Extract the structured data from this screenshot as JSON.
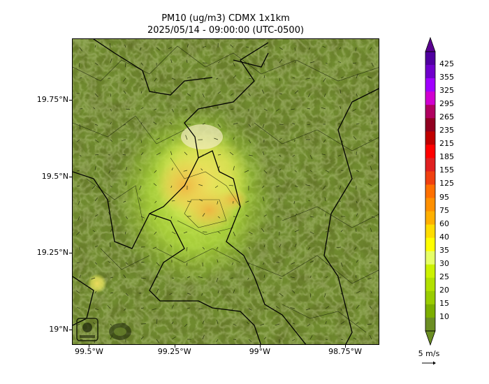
{
  "title_line1": "PM10 (ug/m3) CDMX 1x1km",
  "title_line2": "2025/05/14 - 09:00:00 (UTC-0500)",
  "map": {
    "lon_range": [
      -99.55,
      -98.65
    ],
    "lat_range": [
      18.95,
      19.95
    ],
    "y_ticks": [
      {
        "lat": 19.75,
        "label": "19.75°N"
      },
      {
        "lat": 19.5,
        "label": "19.5°N"
      },
      {
        "lat": 19.25,
        "label": "19.25°N"
      },
      {
        "lat": 19.0,
        "label": "19°N"
      }
    ],
    "x_ticks": [
      {
        "lon": -99.5,
        "label": "99.5°W"
      },
      {
        "lon": -99.25,
        "label": "99.25°W"
      },
      {
        "lon": -99.0,
        "label": "99°W"
      },
      {
        "lon": -98.75,
        "label": "98.75°W"
      }
    ]
  },
  "colorbar": {
    "levels": [
      "10",
      "15",
      "20",
      "25",
      "30",
      "35",
      "40",
      "60",
      "75",
      "95",
      "125",
      "155",
      "185",
      "215",
      "235",
      "265",
      "295",
      "325",
      "355",
      "425"
    ],
    "colors": [
      "#6b8e23",
      "#7cae00",
      "#99cc00",
      "#b2e000",
      "#ccf200",
      "#e6ff66",
      "#ffff00",
      "#ffdd00",
      "#ffb000",
      "#ff9000",
      "#ff7000",
      "#f04010",
      "#e02020",
      "#ff0000",
      "#c00000",
      "#900020",
      "#b00060",
      "#d000d0",
      "#a000ff",
      "#7000cc",
      "#5000a0"
    ],
    "extend_low_color": "#6b8e23",
    "extend_high_color": "#5a0090"
  },
  "wind_reference": {
    "label": "5 m/s"
  },
  "accent_colors": {
    "frame": "#000000",
    "terrain": "#6f8a2e",
    "boundary": "#000000"
  }
}
